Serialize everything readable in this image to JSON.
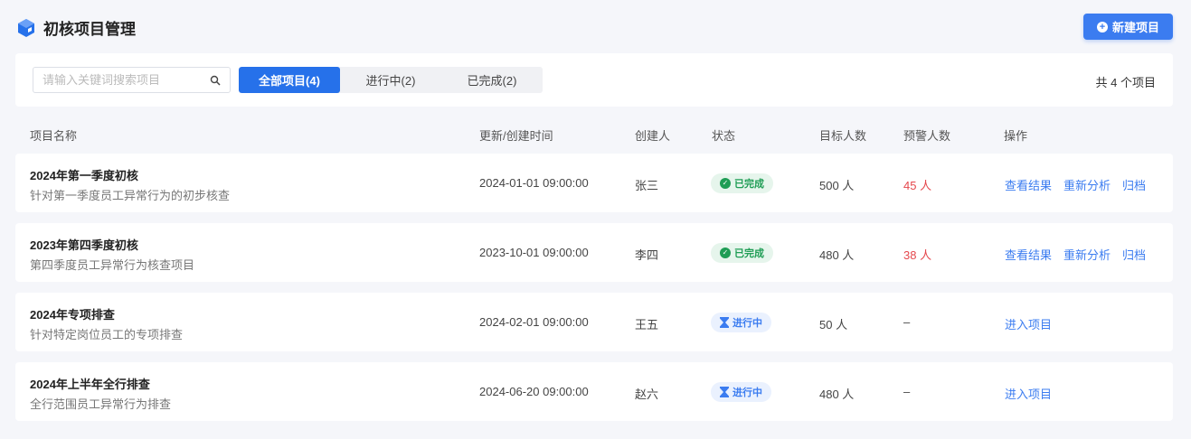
{
  "header": {
    "title": "初核项目管理",
    "new_button": "新建项目"
  },
  "filter": {
    "search_placeholder": "请输入关键词搜索项目",
    "tabs": [
      {
        "label": "全部项目(4)",
        "active": true
      },
      {
        "label": "进行中(2)"
      },
      {
        "label": "已完成(2)"
      }
    ],
    "count": "共 4 个项目"
  },
  "columns": [
    "项目名称",
    "更新/创建时间",
    "创建人",
    "状态",
    "目标人数",
    "预警人数",
    "操作"
  ],
  "rows": [
    {
      "name": "2024年第一季度初核",
      "desc": "针对第一季度员工异常行为的初步核查",
      "time": "2024-01-01  09:00:00",
      "creator": "张三",
      "status": "已完成",
      "status_type": "done",
      "target": "500 人",
      "warn": "45 人",
      "ops": [
        "查看结果",
        "重新分析",
        "归档"
      ]
    },
    {
      "name": "2023年第四季度初核",
      "desc": "第四季度员工异常行为核查项目",
      "time": "2023-10-01  09:00:00",
      "creator": "李四",
      "status": "已完成",
      "status_type": "done",
      "target": "480 人",
      "warn": "38 人",
      "ops": [
        "查看结果",
        "重新分析",
        "归档"
      ]
    },
    {
      "name": "2024年专项排查",
      "desc": "针对特定岗位员工的专项排查",
      "time": "2024-02-01  09:00:00",
      "creator": "王五",
      "status": "进行中",
      "status_type": "progress",
      "target": "50 人",
      "warn": "–",
      "ops": [
        "进入项目"
      ]
    },
    {
      "name": "2024年上半年全行排查",
      "desc": "全行范围员工异常行为排查",
      "time": "2024-06-20  09:00:00",
      "creator": "赵六",
      "status": "进行中",
      "status_type": "progress",
      "target": "480 人",
      "warn": "–",
      "ops": [
        "进入项目"
      ]
    }
  ],
  "colors": {
    "primary": "#2671ea",
    "done": "#1f9d55",
    "warn": "#e5484d",
    "background": "#f5f6fa"
  }
}
